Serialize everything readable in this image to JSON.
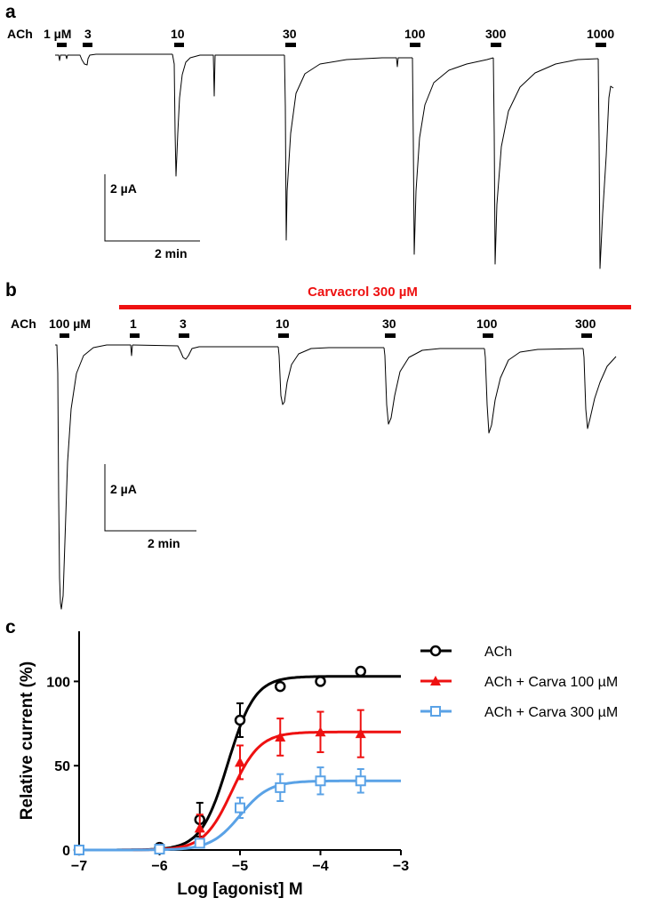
{
  "panels": {
    "a": {
      "letter": "a",
      "agonist": "ACh",
      "applications": [
        "1 µM",
        "3",
        "10",
        "30",
        "100",
        "300",
        "1000"
      ],
      "scale_current": "2 µA",
      "scale_time": "2 min"
    },
    "b": {
      "letter": "b",
      "blocker": "Carvacrol  300 µM",
      "agonist": "ACh",
      "applications": [
        "100 µM",
        "1",
        "3",
        "10",
        "30",
        "100",
        "300"
      ],
      "scale_current": "2 µA",
      "scale_time": "2 min"
    },
    "c": {
      "letter": "c"
    }
  },
  "colors": {
    "ach": "#000000",
    "carva100": "#ee1111",
    "carva300": "#5aa2e6",
    "blocker_bar": "#ee1111"
  },
  "chart_data": {
    "type": "scatter",
    "title": "",
    "xlabel": "Log [agonist] M",
    "ylabel": "Relative current (%)",
    "xlim": [
      -7,
      -3
    ],
    "ylim": [
      0,
      125
    ],
    "xticks": [
      -7,
      -6,
      -5,
      -4,
      -3
    ],
    "xtick_labels": [
      "−7",
      "−6",
      "−5",
      "−4",
      "−3"
    ],
    "yticks": [
      0,
      50,
      100
    ],
    "ytick_labels": [
      "0",
      "50",
      "100"
    ],
    "legend_position": "top-right",
    "series": [
      {
        "name": "ACh",
        "color": "#000000",
        "marker": "circle",
        "x": [
          -7,
          -6,
          -5.5,
          -5,
          -4.5,
          -4,
          -3.5
        ],
        "y": [
          0,
          1.5,
          18,
          77,
          97,
          100,
          106
        ],
        "err": [
          0,
          0,
          10,
          10,
          0,
          0,
          0
        ],
        "fit": {
          "bottom": 0,
          "top": 103,
          "logEC50": -5.15,
          "hill": 2.6
        }
      },
      {
        "name": "ACh + Carva 100 µM",
        "color": "#ee1111",
        "marker": "triangle",
        "x": [
          -7,
          -6,
          -5.5,
          -5,
          -4.5,
          -4,
          -3.5
        ],
        "y": [
          0,
          1,
          13,
          52,
          67,
          70,
          69
        ],
        "err": [
          0,
          0,
          8,
          10,
          11,
          12,
          14
        ],
        "fit": {
          "bottom": 0,
          "top": 70,
          "logEC50": -5.1,
          "hill": 2.5
        }
      },
      {
        "name": "ACh + Carva 300 µM",
        "color": "#5aa2e6",
        "marker": "square",
        "x": [
          -7,
          -6,
          -5.5,
          -5,
          -4.5,
          -4,
          -3.5
        ],
        "y": [
          0,
          0.5,
          4,
          25,
          37,
          41,
          41
        ],
        "err": [
          0,
          0,
          2,
          6,
          8,
          8,
          7
        ],
        "fit": {
          "bottom": 0,
          "top": 41,
          "logEC50": -5.0,
          "hill": 2.4
        }
      }
    ]
  }
}
